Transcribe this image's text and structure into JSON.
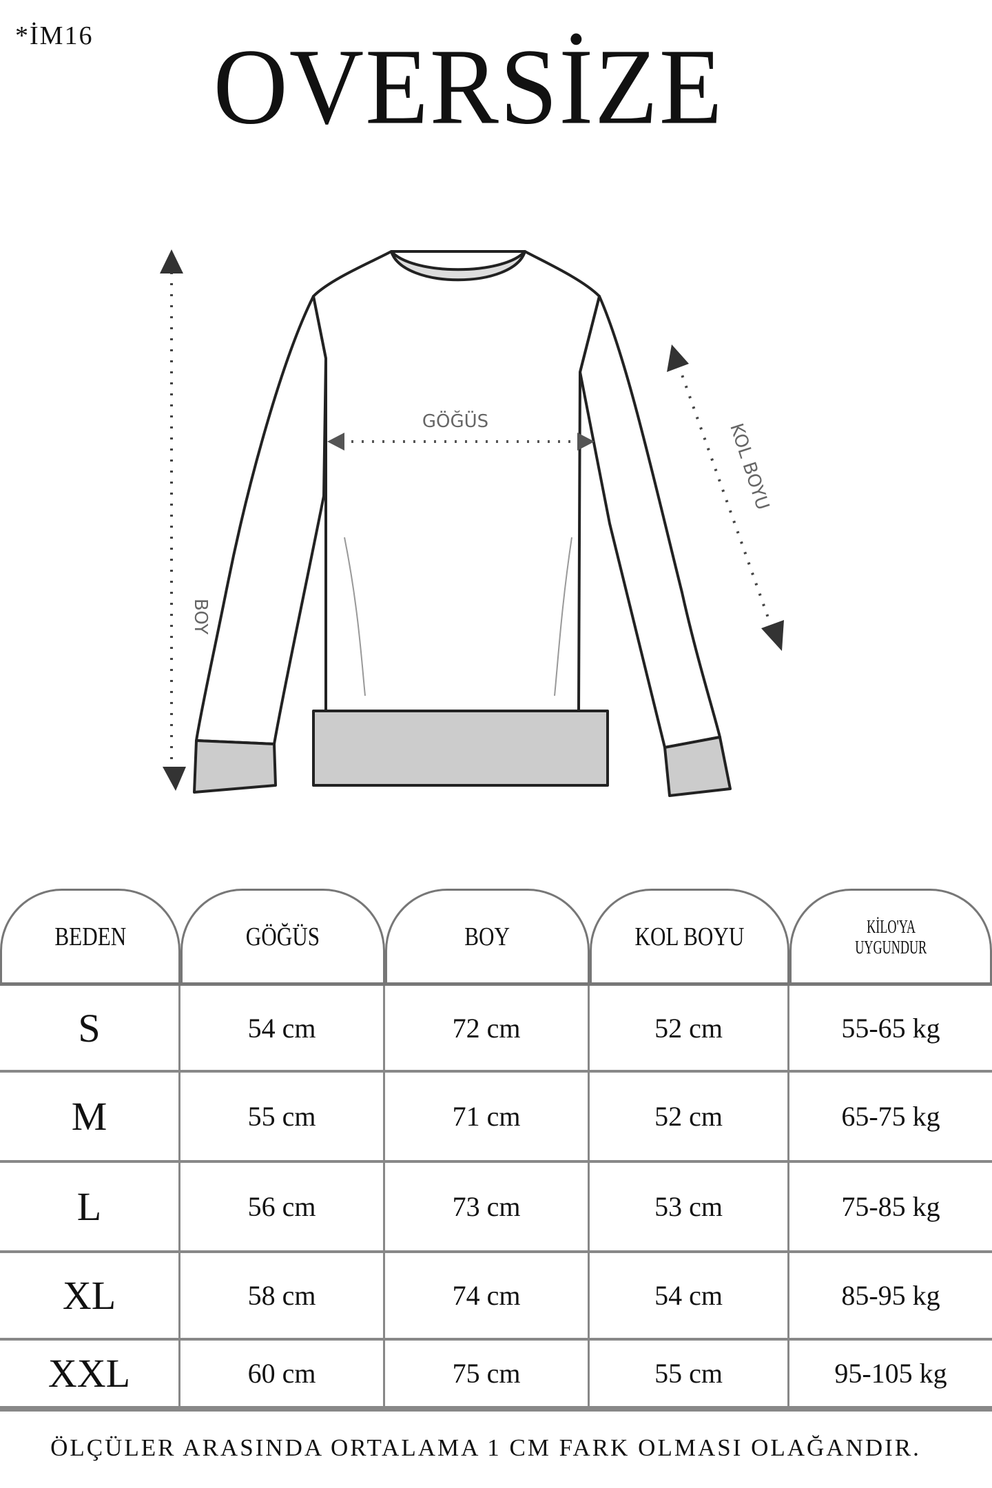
{
  "header": {
    "code": "*İM16",
    "title": "OVERSİZE"
  },
  "diagram": {
    "labels": {
      "chest": "GÖĞÜS",
      "length": "BOY",
      "sleeve": "KOL BOYU"
    }
  },
  "size_table": {
    "headers": [
      "BEDEN",
      "GÖĞÜS",
      "BOY",
      "KOL BOYU",
      "KİLO'YA UYGUNDUR"
    ],
    "header_weight_lines": [
      "KİLO'YA",
      "UYGUNDUR"
    ],
    "rows": [
      [
        "S",
        "54 cm",
        "72 cm",
        "52  cm",
        "55-65 kg"
      ],
      [
        "M",
        "55 cm",
        "71 cm",
        "52 cm",
        "65-75 kg"
      ],
      [
        "L",
        "56 cm",
        "73 cm",
        "53 cm",
        "75-85 kg"
      ],
      [
        "XL",
        "58 cm",
        "74 cm",
        "54 cm",
        "85-95 kg"
      ],
      [
        "XXL",
        "60 cm",
        "75 cm",
        "55 cm",
        "95-105 kg"
      ]
    ]
  },
  "footer": {
    "note": "ÖLÇÜLER ARASINDA ORTALAMA 1 CM FARK OLMASI OLAĞANDIR."
  }
}
